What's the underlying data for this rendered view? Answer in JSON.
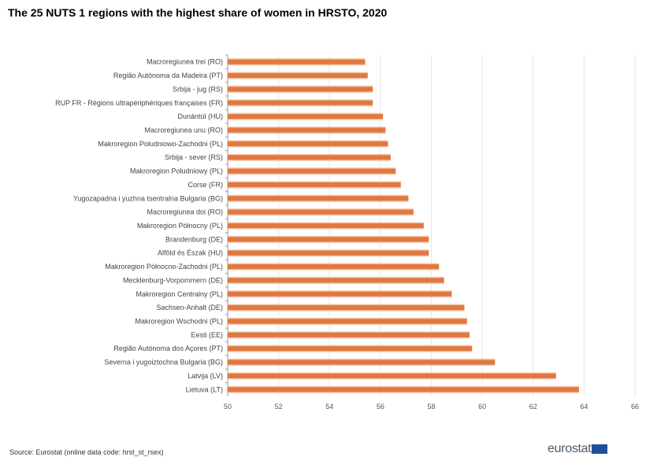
{
  "title": "The 25 NUTS 1 regions with the highest share of women in HRSTO, 2020",
  "source": "Source: Eurostat (online data code: hrst_st_rsex)",
  "logo": "eurostat",
  "colors": {
    "bar": "#e07840",
    "grid": "#e6e6e6"
  },
  "chart_data": {
    "type": "bar",
    "orientation": "horizontal",
    "title": "The 25 NUTS 1 regions with the highest share of women in HRSTO, 2020",
    "xlabel": "",
    "ylabel": "",
    "xlim": [
      50,
      66
    ],
    "xticks": [
      "50",
      "52",
      "54",
      "56",
      "58",
      "60",
      "62",
      "64",
      "66"
    ],
    "grid": "vertical",
    "categories": [
      "Macroregiunea trei (RO)",
      "Região Autónoma da Madeira (PT)",
      "Srbija - jug (RS)",
      "RUP FR - Régions ultrapériphériques françaises (FR)",
      "Dunántúl (HU)",
      "Macroregiunea unu (RO)",
      "Makroregion Południowo-Zachodni (PL)",
      "Srbija - sever (RS)",
      "Makroregion Południowy (PL)",
      "Corse (FR)",
      "Yugozapadna i yuzhna tsentralna Bulgaria (BG)",
      "Macroregiunea doi (RO)",
      "Makroregion Północny (PL)",
      "Brandenburg (DE)",
      "Alföld és Észak (HU)",
      "Makroregion Północno-Zachodni (PL)",
      "Mecklenburg-Vorpommern (DE)",
      "Makroregion Centralny (PL)",
      "Sachsen-Anhalt (DE)",
      "Makroregion Wschodni (PL)",
      "Eesti (EE)",
      "Região Autónoma dos Açores (PT)",
      "Severna i yugoiztochna Bulgaria (BG)",
      "Latvija (LV)",
      "Lietuva (LT)"
    ],
    "values": [
      55.4,
      55.5,
      55.7,
      55.7,
      56.1,
      56.2,
      56.3,
      56.4,
      56.6,
      56.8,
      57.1,
      57.3,
      57.7,
      57.9,
      57.9,
      58.3,
      58.5,
      58.8,
      59.3,
      59.4,
      59.5,
      59.6,
      60.5,
      62.9,
      63.8
    ]
  }
}
